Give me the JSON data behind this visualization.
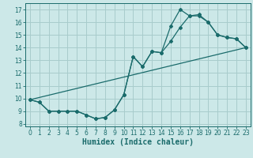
{
  "xlabel": "Humidex (Indice chaleur)",
  "xlim": [
    -0.5,
    23.5
  ],
  "ylim": [
    7.8,
    17.5
  ],
  "xticks": [
    0,
    1,
    2,
    3,
    4,
    5,
    6,
    7,
    8,
    9,
    10,
    11,
    12,
    13,
    14,
    15,
    16,
    17,
    18,
    19,
    20,
    21,
    22,
    23
  ],
  "yticks": [
    8,
    9,
    10,
    11,
    12,
    13,
    14,
    15,
    16,
    17
  ],
  "bg_color": "#cce8e8",
  "grid_color": "#a8cccc",
  "line_color": "#1a6b6b",
  "line1_y": [
    9.9,
    9.7,
    9.0,
    9.0,
    9.0,
    9.0,
    8.7,
    8.4,
    8.5,
    9.1,
    10.3,
    13.3,
    12.5,
    13.7,
    13.6,
    14.5,
    15.6,
    16.5,
    16.5,
    16.0,
    15.0,
    14.8,
    14.7,
    14.0
  ],
  "line2_y": [
    9.9,
    9.7,
    9.0,
    9.0,
    9.0,
    9.0,
    8.7,
    8.4,
    8.5,
    9.1,
    10.3,
    13.3,
    12.5,
    13.7,
    13.6,
    15.7,
    17.0,
    16.5,
    16.6,
    16.0,
    15.0,
    14.8,
    14.7,
    14.0
  ],
  "line3_x": [
    0,
    23
  ],
  "line3_y": [
    9.9,
    14.0
  ],
  "font_color": "#1a6b6b",
  "tick_fontsize": 5.5,
  "label_fontsize": 7.0
}
